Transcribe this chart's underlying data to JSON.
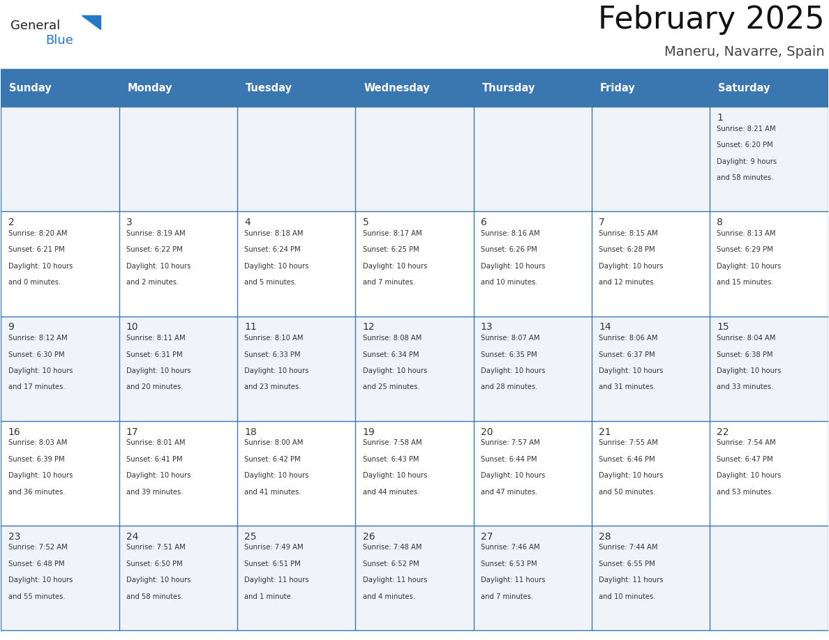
{
  "title": "February 2025",
  "subtitle": "Maneru, Navarre, Spain",
  "days_of_week": [
    "Sunday",
    "Monday",
    "Tuesday",
    "Wednesday",
    "Thursday",
    "Friday",
    "Saturday"
  ],
  "header_bg": "#3a76b0",
  "header_text": "#ffffff",
  "cell_bg_odd": "#f0f4f8",
  "cell_bg_even": "#ffffff",
  "border_color": "#3a76b0",
  "text_color": "#333333",
  "day_num_color": "#333333",
  "calendar_data": [
    {
      "day": 1,
      "col": 6,
      "row": 0,
      "sunrise": "8:21 AM",
      "sunset": "6:20 PM",
      "daylight": "9 hours and 58 minutes."
    },
    {
      "day": 2,
      "col": 0,
      "row": 1,
      "sunrise": "8:20 AM",
      "sunset": "6:21 PM",
      "daylight": "10 hours and 0 minutes."
    },
    {
      "day": 3,
      "col": 1,
      "row": 1,
      "sunrise": "8:19 AM",
      "sunset": "6:22 PM",
      "daylight": "10 hours and 2 minutes."
    },
    {
      "day": 4,
      "col": 2,
      "row": 1,
      "sunrise": "8:18 AM",
      "sunset": "6:24 PM",
      "daylight": "10 hours and 5 minutes."
    },
    {
      "day": 5,
      "col": 3,
      "row": 1,
      "sunrise": "8:17 AM",
      "sunset": "6:25 PM",
      "daylight": "10 hours and 7 minutes."
    },
    {
      "day": 6,
      "col": 4,
      "row": 1,
      "sunrise": "8:16 AM",
      "sunset": "6:26 PM",
      "daylight": "10 hours and 10 minutes."
    },
    {
      "day": 7,
      "col": 5,
      "row": 1,
      "sunrise": "8:15 AM",
      "sunset": "6:28 PM",
      "daylight": "10 hours and 12 minutes."
    },
    {
      "day": 8,
      "col": 6,
      "row": 1,
      "sunrise": "8:13 AM",
      "sunset": "6:29 PM",
      "daylight": "10 hours and 15 minutes."
    },
    {
      "day": 9,
      "col": 0,
      "row": 2,
      "sunrise": "8:12 AM",
      "sunset": "6:30 PM",
      "daylight": "10 hours and 17 minutes."
    },
    {
      "day": 10,
      "col": 1,
      "row": 2,
      "sunrise": "8:11 AM",
      "sunset": "6:31 PM",
      "daylight": "10 hours and 20 minutes."
    },
    {
      "day": 11,
      "col": 2,
      "row": 2,
      "sunrise": "8:10 AM",
      "sunset": "6:33 PM",
      "daylight": "10 hours and 23 minutes."
    },
    {
      "day": 12,
      "col": 3,
      "row": 2,
      "sunrise": "8:08 AM",
      "sunset": "6:34 PM",
      "daylight": "10 hours and 25 minutes."
    },
    {
      "day": 13,
      "col": 4,
      "row": 2,
      "sunrise": "8:07 AM",
      "sunset": "6:35 PM",
      "daylight": "10 hours and 28 minutes."
    },
    {
      "day": 14,
      "col": 5,
      "row": 2,
      "sunrise": "8:06 AM",
      "sunset": "6:37 PM",
      "daylight": "10 hours and 31 minutes."
    },
    {
      "day": 15,
      "col": 6,
      "row": 2,
      "sunrise": "8:04 AM",
      "sunset": "6:38 PM",
      "daylight": "10 hours and 33 minutes."
    },
    {
      "day": 16,
      "col": 0,
      "row": 3,
      "sunrise": "8:03 AM",
      "sunset": "6:39 PM",
      "daylight": "10 hours and 36 minutes."
    },
    {
      "day": 17,
      "col": 1,
      "row": 3,
      "sunrise": "8:01 AM",
      "sunset": "6:41 PM",
      "daylight": "10 hours and 39 minutes."
    },
    {
      "day": 18,
      "col": 2,
      "row": 3,
      "sunrise": "8:00 AM",
      "sunset": "6:42 PM",
      "daylight": "10 hours and 41 minutes."
    },
    {
      "day": 19,
      "col": 3,
      "row": 3,
      "sunrise": "7:58 AM",
      "sunset": "6:43 PM",
      "daylight": "10 hours and 44 minutes."
    },
    {
      "day": 20,
      "col": 4,
      "row": 3,
      "sunrise": "7:57 AM",
      "sunset": "6:44 PM",
      "daylight": "10 hours and 47 minutes."
    },
    {
      "day": 21,
      "col": 5,
      "row": 3,
      "sunrise": "7:55 AM",
      "sunset": "6:46 PM",
      "daylight": "10 hours and 50 minutes."
    },
    {
      "day": 22,
      "col": 6,
      "row": 3,
      "sunrise": "7:54 AM",
      "sunset": "6:47 PM",
      "daylight": "10 hours and 53 minutes."
    },
    {
      "day": 23,
      "col": 0,
      "row": 4,
      "sunrise": "7:52 AM",
      "sunset": "6:48 PM",
      "daylight": "10 hours and 55 minutes."
    },
    {
      "day": 24,
      "col": 1,
      "row": 4,
      "sunrise": "7:51 AM",
      "sunset": "6:50 PM",
      "daylight": "10 hours and 58 minutes."
    },
    {
      "day": 25,
      "col": 2,
      "row": 4,
      "sunrise": "7:49 AM",
      "sunset": "6:51 PM",
      "daylight": "11 hours and 1 minute."
    },
    {
      "day": 26,
      "col": 3,
      "row": 4,
      "sunrise": "7:48 AM",
      "sunset": "6:52 PM",
      "daylight": "11 hours and 4 minutes."
    },
    {
      "day": 27,
      "col": 4,
      "row": 4,
      "sunrise": "7:46 AM",
      "sunset": "6:53 PM",
      "daylight": "11 hours and 7 minutes."
    },
    {
      "day": 28,
      "col": 5,
      "row": 4,
      "sunrise": "7:44 AM",
      "sunset": "6:55 PM",
      "daylight": "11 hours and 10 minutes."
    }
  ],
  "logo_text_general": "General",
  "logo_text_blue": "Blue",
  "logo_color_general": "#222222",
  "logo_color_blue": "#2478c5",
  "logo_triangle_color": "#2478c5"
}
